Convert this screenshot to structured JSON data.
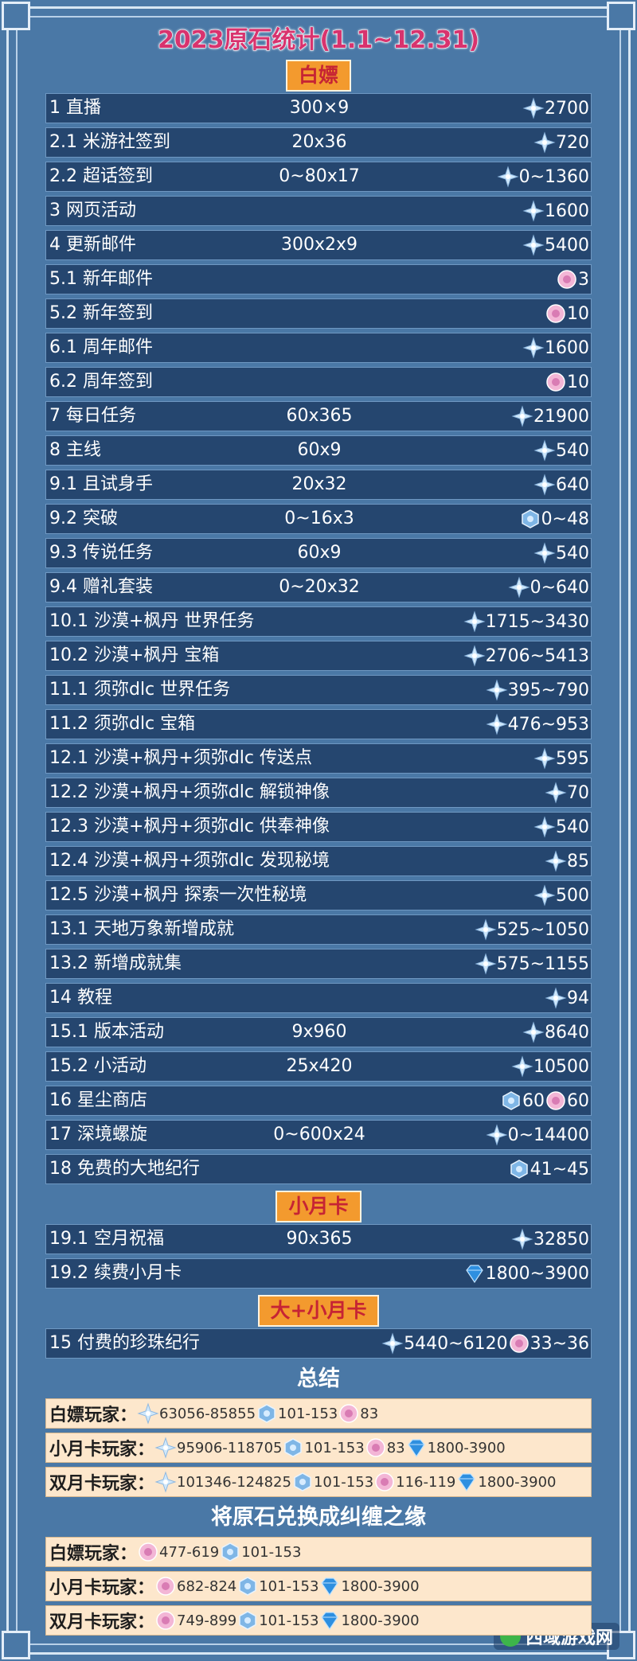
{
  "title": "2023原石统计(1.1~12.31)",
  "sections": [
    {
      "heading": "白嫖",
      "rows": [
        {
          "label": "1 直播",
          "formula": "300×9",
          "amounts": [
            {
              "icon": "primogem",
              "text": "2700"
            }
          ]
        },
        {
          "label": "2.1 米游社签到",
          "formula": "20x36",
          "amounts": [
            {
              "icon": "primogem",
              "text": "720"
            }
          ]
        },
        {
          "label": "2.2 超话签到",
          "formula": "0~80x17",
          "amounts": [
            {
              "icon": "primogem",
              "text": "0~1360"
            }
          ]
        },
        {
          "label": "3 网页活动",
          "amounts": [
            {
              "icon": "primogem",
              "text": "1600"
            }
          ]
        },
        {
          "label": "4 更新邮件",
          "formula": "300x2x9",
          "amounts": [
            {
              "icon": "primogem",
              "text": "5400"
            }
          ]
        },
        {
          "label": "5.1 新年邮件",
          "amounts": [
            {
              "icon": "fate",
              "text": "3"
            }
          ]
        },
        {
          "label": "5.2 新年签到",
          "amounts": [
            {
              "icon": "fate",
              "text": "10"
            }
          ]
        },
        {
          "label": "6.1 周年邮件",
          "amounts": [
            {
              "icon": "primogem",
              "text": "1600"
            }
          ]
        },
        {
          "label": "6.2 周年签到",
          "amounts": [
            {
              "icon": "fate",
              "text": "10"
            }
          ]
        },
        {
          "label": "7 每日任务",
          "formula": "60x365",
          "amounts": [
            {
              "icon": "primogem",
              "text": "21900"
            }
          ]
        },
        {
          "label": "8 主线",
          "formula": "60x9",
          "amounts": [
            {
              "icon": "primogem",
              "text": "540"
            }
          ]
        },
        {
          "label": "9.1 且试身手",
          "formula": "20x32",
          "amounts": [
            {
              "icon": "primogem",
              "text": "640"
            }
          ]
        },
        {
          "label": "9.2 突破",
          "formula": "0~16x3",
          "amounts": [
            {
              "icon": "stardust",
              "text": "0~48"
            }
          ]
        },
        {
          "label": "9.3 传说任务",
          "formula": "60x9",
          "amounts": [
            {
              "icon": "primogem",
              "text": "540"
            }
          ]
        },
        {
          "label": "9.4 赠礼套装",
          "formula": "0~20x32",
          "amounts": [
            {
              "icon": "primogem",
              "text": "0~640"
            }
          ]
        },
        {
          "label": "10.1 沙漠+枫丹 世界任务",
          "amounts": [
            {
              "icon": "primogem",
              "text": "1715~3430"
            }
          ]
        },
        {
          "label": "10.2 沙漠+枫丹 宝箱",
          "amounts": [
            {
              "icon": "primogem",
              "text": "2706~5413"
            }
          ]
        },
        {
          "label": "11.1 须弥dlc 世界任务",
          "amounts": [
            {
              "icon": "primogem",
              "text": "395~790"
            }
          ]
        },
        {
          "label": "11.2 须弥dlc 宝箱",
          "amounts": [
            {
              "icon": "primogem",
              "text": "476~953"
            }
          ]
        },
        {
          "label": "12.1 沙漠+枫丹+须弥dlc 传送点",
          "amounts": [
            {
              "icon": "primogem",
              "text": "595"
            }
          ]
        },
        {
          "label": "12.2 沙漠+枫丹+须弥dlc 解锁神像",
          "amounts": [
            {
              "icon": "primogem",
              "text": "70"
            }
          ]
        },
        {
          "label": "12.3 沙漠+枫丹+须弥dlc 供奉神像",
          "amounts": [
            {
              "icon": "primogem",
              "text": "540"
            }
          ]
        },
        {
          "label": "12.4 沙漠+枫丹+须弥dlc 发现秘境",
          "amounts": [
            {
              "icon": "primogem",
              "text": "85"
            }
          ]
        },
        {
          "label": "12.5 沙漠+枫丹 探索一次性秘境",
          "amounts": [
            {
              "icon": "primogem",
              "text": "500"
            }
          ]
        },
        {
          "label": "13.1 天地万象新增成就",
          "amounts": [
            {
              "icon": "primogem",
              "text": "525~1050"
            }
          ]
        },
        {
          "label": "13.2 新增成就集",
          "amounts": [
            {
              "icon": "primogem",
              "text": "575~1155"
            }
          ]
        },
        {
          "label": "14 教程",
          "amounts": [
            {
              "icon": "primogem",
              "text": "94"
            }
          ]
        },
        {
          "label": "15.1 版本活动",
          "formula": "9x960",
          "amounts": [
            {
              "icon": "primogem",
              "text": "8640"
            }
          ]
        },
        {
          "label": "15.2 小活动",
          "formula": "25x420",
          "amounts": [
            {
              "icon": "primogem",
              "text": "10500"
            }
          ]
        },
        {
          "label": "16 星尘商店",
          "amounts": [
            {
              "icon": "stardust",
              "text": "60"
            },
            {
              "icon": "fate",
              "text": "60"
            }
          ]
        },
        {
          "label": "17 深境螺旋",
          "formula": "0~600x24",
          "amounts": [
            {
              "icon": "primogem",
              "text": "0~14400"
            }
          ]
        },
        {
          "label": "18 免费的大地纪行",
          "amounts": [
            {
              "icon": "stardust",
              "text": "41~45"
            }
          ]
        }
      ]
    },
    {
      "heading": "小月卡",
      "rows": [
        {
          "label": "19.1 空月祝福",
          "formula": "90x365",
          "amounts": [
            {
              "icon": "primogem",
              "text": "32850"
            }
          ]
        },
        {
          "label": "19.2 续费小月卡",
          "amounts": [
            {
              "icon": "crystal",
              "text": "1800~3900"
            }
          ]
        }
      ]
    },
    {
      "heading": "大+小月卡",
      "rows": [
        {
          "label": "15 付费的珍珠纪行",
          "amounts": [
            {
              "icon": "primogem",
              "text": "5440~6120"
            },
            {
              "icon": "fate",
              "text": "33~36"
            }
          ]
        }
      ]
    }
  ],
  "summaries": [
    {
      "heading": "总结",
      "rows": [
        {
          "label": "白嫖玩家：",
          "amounts": [
            {
              "icon": "primogem",
              "text": "63056-85855"
            },
            {
              "icon": "stardust",
              "text": "101-153"
            },
            {
              "icon": "fate",
              "text": "83"
            }
          ]
        },
        {
          "label": "小月卡玩家：",
          "amounts": [
            {
              "icon": "primogem",
              "text": "95906-118705"
            },
            {
              "icon": "stardust",
              "text": "101-153"
            },
            {
              "icon": "fate",
              "text": "83"
            },
            {
              "icon": "crystal",
              "text": "1800-3900"
            }
          ]
        },
        {
          "label": "双月卡玩家：",
          "amounts": [
            {
              "icon": "primogem",
              "text": "101346-124825"
            },
            {
              "icon": "stardust",
              "text": "101-153"
            },
            {
              "icon": "fate",
              "text": "116-119"
            },
            {
              "icon": "crystal",
              "text": "1800-3900"
            }
          ]
        }
      ]
    },
    {
      "heading": "将原石兑换成纠缠之缘",
      "rows": [
        {
          "label": "白嫖玩家：",
          "amounts": [
            {
              "icon": "fate",
              "text": "477-619"
            },
            {
              "icon": "stardust",
              "text": "101-153"
            }
          ]
        },
        {
          "label": "小月卡玩家：",
          "amounts": [
            {
              "icon": "fate",
              "text": "682-824"
            },
            {
              "icon": "stardust",
              "text": "101-153"
            },
            {
              "icon": "crystal",
              "text": "1800-3900"
            }
          ]
        },
        {
          "label": "双月卡玩家：",
          "amounts": [
            {
              "icon": "fate",
              "text": "749-899"
            },
            {
              "icon": "stardust",
              "text": "101-153"
            },
            {
              "icon": "crystal",
              "text": "1800-3900"
            }
          ]
        }
      ]
    }
  ],
  "watermark": "西域游戏网"
}
